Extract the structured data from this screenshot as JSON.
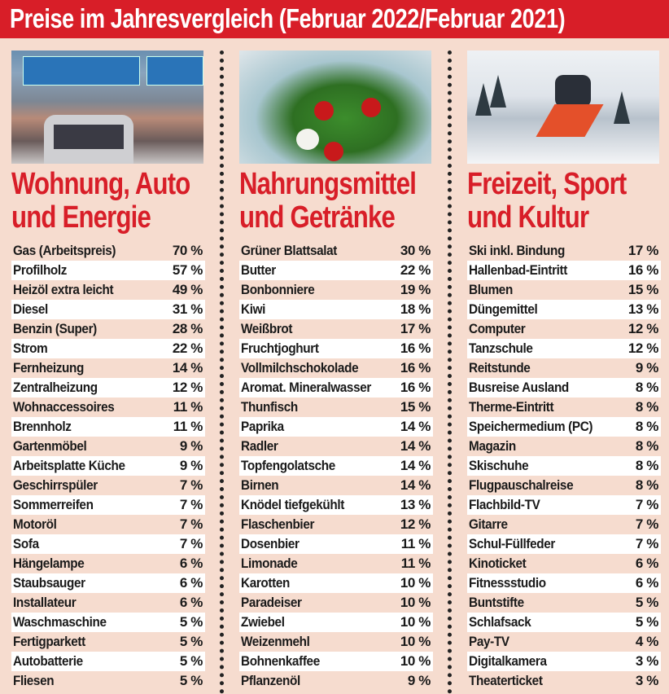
{
  "title": "Preise im Jahresvergleich (Februar 2022/Februar 2021)",
  "colors": {
    "accent": "#d81e28",
    "background": "#f6dccf",
    "stripe": "#ffffff"
  },
  "columns": [
    {
      "heading_line1": "Wohnung, Auto",
      "heading_line2": "und Energie",
      "photo": "traffic-jam-photo",
      "items": [
        {
          "name": "Gas (Arbeitspreis)",
          "value": "70 %"
        },
        {
          "name": "Profilholz",
          "value": "57 %"
        },
        {
          "name": "Heizöl extra leicht",
          "value": "49 %"
        },
        {
          "name": "Diesel",
          "value": "31 %"
        },
        {
          "name": "Benzin (Super)",
          "value": "28 %"
        },
        {
          "name": "Strom",
          "value": "22 %"
        },
        {
          "name": "Fernheizung",
          "value": "14 %"
        },
        {
          "name": "Zentralheizung",
          "value": "12 %"
        },
        {
          "name": "Wohnaccessoires",
          "value": "11 %"
        },
        {
          "name": "Brennholz",
          "value": "11 %"
        },
        {
          "name": "Gartenmöbel",
          "value": "9 %"
        },
        {
          "name": "Arbeitsplatte Küche",
          "value": "9 %"
        },
        {
          "name": "Geschirrspüler",
          "value": "7 %"
        },
        {
          "name": "Sommerreifen",
          "value": "7 %"
        },
        {
          "name": "Motoröl",
          "value": "7 %"
        },
        {
          "name": "Sofa",
          "value": "7 %"
        },
        {
          "name": "Hängelampe",
          "value": "6 %"
        },
        {
          "name": "Staubsauger",
          "value": "6 %"
        },
        {
          "name": "Installateur",
          "value": "6 %"
        },
        {
          "name": "Waschmaschine",
          "value": "5 %"
        },
        {
          "name": "Fertigparkett",
          "value": "5 %"
        },
        {
          "name": "Autobatterie",
          "value": "5 %"
        },
        {
          "name": "Fliesen",
          "value": "5 %"
        }
      ]
    },
    {
      "heading_line1": "Nahrungsmittel",
      "heading_line2": "und Getränke",
      "photo": "salad-bowl-photo",
      "items": [
        {
          "name": "Grüner Blattsalat",
          "value": "30 %"
        },
        {
          "name": "Butter",
          "value": "22 %"
        },
        {
          "name": "Bonbonniere",
          "value": "19 %"
        },
        {
          "name": "Kiwi",
          "value": "18 %"
        },
        {
          "name": "Weißbrot",
          "value": "17 %"
        },
        {
          "name": "Fruchtjoghurt",
          "value": "16 %"
        },
        {
          "name": "Vollmilchschokolade",
          "value": "16 %"
        },
        {
          "name": "Aromat. Mineralwasser",
          "value": "16 %"
        },
        {
          "name": "Thunfisch",
          "value": "15 %"
        },
        {
          "name": "Paprika",
          "value": "14 %"
        },
        {
          "name": "Radler",
          "value": "14 %"
        },
        {
          "name": "Topfengolatsche",
          "value": "14 %"
        },
        {
          "name": "Birnen",
          "value": "14 %"
        },
        {
          "name": "Knödel tiefgekühlt",
          "value": "13 %"
        },
        {
          "name": "Flaschenbier",
          "value": "12 %"
        },
        {
          "name": "Dosenbier",
          "value": "11 %"
        },
        {
          "name": "Limonade",
          "value": "11 %"
        },
        {
          "name": "Karotten",
          "value": "10 %"
        },
        {
          "name": "Paradeiser",
          "value": "10 %"
        },
        {
          "name": "Zwiebel",
          "value": "10 %"
        },
        {
          "name": "Weizenmehl",
          "value": "10 %"
        },
        {
          "name": "Bohnenkaffee",
          "value": "10 %"
        },
        {
          "name": "Pflanzenöl",
          "value": "9 %"
        }
      ]
    },
    {
      "heading_line1": "Freizeit, Sport",
      "heading_line2": "und Kultur",
      "photo": "skier-photo",
      "items": [
        {
          "name": "Ski inkl. Bindung",
          "value": "17 %"
        },
        {
          "name": "Hallenbad-Eintritt",
          "value": "16 %"
        },
        {
          "name": "Blumen",
          "value": "15 %"
        },
        {
          "name": "Düngemittel",
          "value": "13 %"
        },
        {
          "name": "Computer",
          "value": "12 %"
        },
        {
          "name": "Tanzschule",
          "value": "12 %"
        },
        {
          "name": "Reitstunde",
          "value": "9 %"
        },
        {
          "name": "Busreise Ausland",
          "value": "8 %"
        },
        {
          "name": "Therme-Eintritt",
          "value": "8 %"
        },
        {
          "name": "Speichermedium (PC)",
          "value": "8 %"
        },
        {
          "name": "Magazin",
          "value": "8 %"
        },
        {
          "name": "Skischuhe",
          "value": "8 %"
        },
        {
          "name": "Flugpauschalreise",
          "value": "8 %"
        },
        {
          "name": "Flachbild-TV",
          "value": "7 %"
        },
        {
          "name": "Gitarre",
          "value": "7 %"
        },
        {
          "name": "Schul-Füllfeder",
          "value": "7 %"
        },
        {
          "name": "Kinoticket",
          "value": "6 %"
        },
        {
          "name": "Fitnessstudio",
          "value": "6 %"
        },
        {
          "name": "Buntstifte",
          "value": "5 %"
        },
        {
          "name": "Schlafsack",
          "value": "5 %"
        },
        {
          "name": "Pay-TV",
          "value": "4 %"
        },
        {
          "name": "Digitalkamera",
          "value": "3 %"
        },
        {
          "name": "Theaterticket",
          "value": "3 %"
        }
      ]
    }
  ]
}
